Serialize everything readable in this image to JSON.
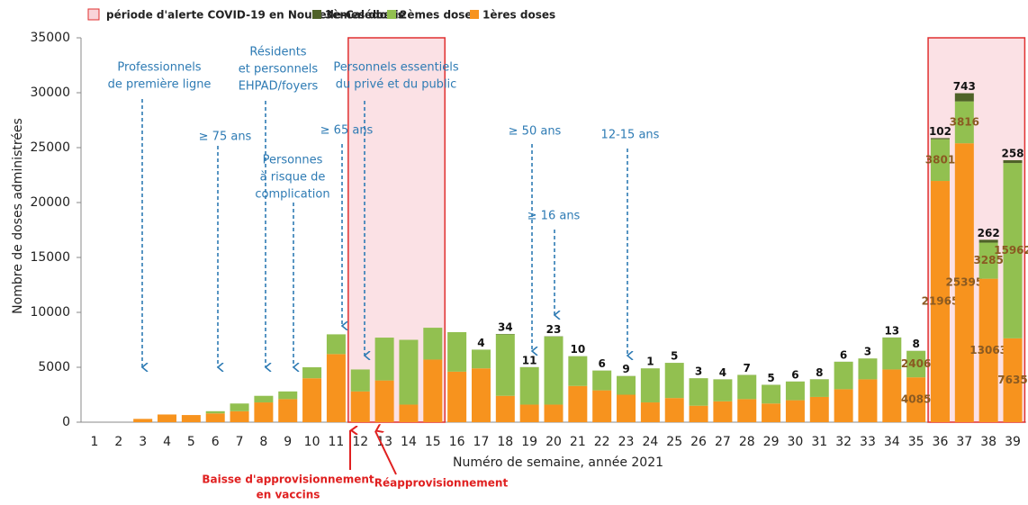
{
  "chart_data": {
    "type": "stacked_bar",
    "x_label": "Numéro de semaine, année 2021",
    "y_label": "Nombre de doses administrées",
    "categories": [
      "1",
      "2",
      "3",
      "4",
      "5",
      "6",
      "7",
      "8",
      "9",
      "10",
      "11",
      "12",
      "13",
      "14",
      "15",
      "16",
      "17",
      "18",
      "19",
      "20",
      "21",
      "22",
      "23",
      "24",
      "25",
      "26",
      "27",
      "28",
      "29",
      "30",
      "31",
      "32",
      "33",
      "34",
      "35",
      "36",
      "37",
      "38",
      "39"
    ],
    "series": [
      {
        "name": "1ères doses",
        "color": "#f7931e",
        "values": [
          0,
          0,
          300,
          700,
          650,
          800,
          1000,
          1800,
          2100,
          4000,
          6200,
          2800,
          3800,
          1600,
          5700,
          4600,
          4900,
          2400,
          1600,
          1600,
          3300,
          2900,
          2500,
          1800,
          2200,
          1500,
          1900,
          2100,
          1700,
          2000,
          2300,
          3000,
          3900,
          4800,
          4085,
          21965,
          25395,
          13063,
          7635
        ],
        "value_labels": [
          null,
          null,
          null,
          null,
          null,
          null,
          null,
          null,
          null,
          null,
          null,
          null,
          null,
          null,
          null,
          null,
          null,
          null,
          null,
          null,
          null,
          null,
          null,
          null,
          null,
          null,
          null,
          null,
          null,
          null,
          null,
          null,
          null,
          null,
          "4085",
          "21965",
          "25395",
          "13063",
          "7635"
        ]
      },
      {
        "name": "2èmes doses",
        "color": "#92c050",
        "values": [
          0,
          0,
          0,
          0,
          0,
          200,
          700,
          600,
          700,
          1000,
          1800,
          2000,
          3900,
          5900,
          2900,
          3600,
          1700,
          5600,
          3400,
          6200,
          2700,
          1800,
          1700,
          3100,
          3200,
          2500,
          2000,
          2200,
          1700,
          1700,
          1600,
          2500,
          1900,
          2900,
          2406,
          3801,
          3816,
          3285,
          15962
        ],
        "value_labels": [
          null,
          null,
          null,
          null,
          null,
          null,
          null,
          null,
          null,
          null,
          null,
          null,
          null,
          null,
          null,
          null,
          null,
          null,
          null,
          null,
          null,
          null,
          null,
          null,
          null,
          null,
          null,
          null,
          null,
          null,
          null,
          null,
          null,
          null,
          "2406",
          "3801",
          "3816",
          "3285",
          "15962"
        ]
      },
      {
        "name": "3èmes doses",
        "color": "#4f6228",
        "values": [
          null,
          null,
          null,
          null,
          null,
          null,
          null,
          null,
          null,
          null,
          null,
          null,
          null,
          null,
          null,
          null,
          4,
          34,
          11,
          23,
          10,
          6,
          9,
          1,
          5,
          3,
          4,
          7,
          5,
          6,
          8,
          6,
          3,
          13,
          8,
          102,
          743,
          262,
          258
        ],
        "value_labels": [
          null,
          null,
          null,
          null,
          null,
          null,
          null,
          null,
          null,
          null,
          null,
          null,
          null,
          null,
          null,
          null,
          "4",
          "34",
          "11",
          "23",
          "10",
          "6",
          "9",
          "1",
          "5",
          "3",
          "4",
          "7",
          "5",
          "6",
          "8",
          "6",
          "3",
          "13",
          "8",
          "102",
          "743",
          "262",
          "258"
        ]
      }
    ],
    "ylim": [
      0,
      35000
    ],
    "yticks": [
      0,
      5000,
      10000,
      15000,
      20000,
      25000,
      30000,
      35000
    ],
    "alert_legend": "période d'alerte COVID-19 en Nouvelle-Calédonie",
    "alert_periods": [
      [
        12,
        15
      ],
      [
        36,
        39
      ]
    ],
    "annotations": [
      {
        "lines": [
          "Professionnels",
          "de première ligne"
        ]
      },
      {
        "lines": [
          "≥ 75 ans"
        ]
      },
      {
        "lines": [
          "Résidents",
          "et personnels",
          "EHPAD/foyers"
        ]
      },
      {
        "lines": [
          "Personnes",
          "à risque de",
          "complication"
        ]
      },
      {
        "lines": [
          "≥ 65 ans"
        ]
      },
      {
        "lines": [
          "Personnels essentiels",
          "du privé et du public"
        ]
      },
      {
        "lines": [
          "≥ 50 ans"
        ]
      },
      {
        "lines": [
          "≥ 16 ans"
        ]
      },
      {
        "lines": [
          "12-15 ans"
        ]
      },
      {
        "lines": [
          "Baisse d'approvisionnement",
          "en vaccins"
        ]
      },
      {
        "lines": [
          "Réapprovisionnement"
        ]
      }
    ]
  }
}
